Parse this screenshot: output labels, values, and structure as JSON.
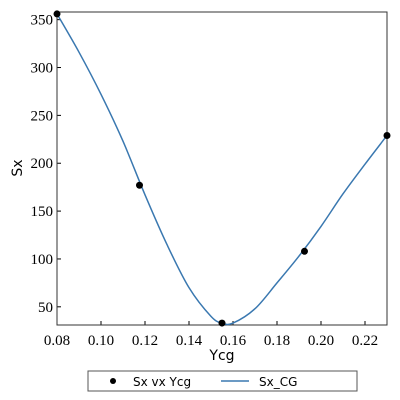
{
  "chart_data": {
    "type": "scatter-line",
    "x_label": "Ycg",
    "y_label": "Sx",
    "xlim": [
      0.08,
      0.23
    ],
    "ylim": [
      31,
      358
    ],
    "xticks": [
      0.08,
      {
        "value": 0.1,
        "label": "0.10"
      },
      0.12,
      0.14,
      0.16,
      0.18,
      {
        "value": 0.2,
        "label": "0.20"
      },
      0.22
    ],
    "yticks": [
      50,
      100,
      150,
      200,
      250,
      300,
      350
    ],
    "series": [
      {
        "name": "Sx vx Ycg",
        "kind": "scatter",
        "color": "#000000",
        "x": [
          0.08,
          0.1175,
          0.155,
          0.1925,
          0.23
        ],
        "values": [
          356,
          177,
          33,
          108,
          229
        ]
      },
      {
        "name": "Sx_CG",
        "kind": "line",
        "color": "#3a78b0",
        "x": [
          0.08,
          0.09,
          0.1,
          0.11,
          0.12,
          0.13,
          0.14,
          0.15,
          0.155,
          0.16,
          0.17,
          0.18,
          0.19,
          0.2,
          0.21,
          0.22,
          0.23
        ],
        "values": [
          356,
          316,
          272,
          223,
          167,
          115,
          70,
          40,
          33,
          33,
          48,
          75,
          103,
          134,
          168,
          199,
          229
        ]
      }
    ]
  }
}
